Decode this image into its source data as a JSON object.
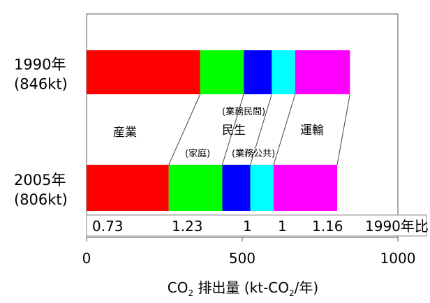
{
  "chart_data": {
    "type": "bar",
    "orientation": "horizontal",
    "stacked": true,
    "categories": [
      {
        "year": "1990年",
        "total": "(846kt)"
      },
      {
        "year": "2005年",
        "total": "(806kt)"
      }
    ],
    "series": [
      {
        "key": "industry",
        "color": "#ff0000",
        "values": [
          365,
          264
        ]
      },
      {
        "key": "household",
        "color": "#00ff00",
        "values": [
          140,
          172
        ]
      },
      {
        "key": "business",
        "color": "#0000ff",
        "values": [
          90,
          90
        ]
      },
      {
        "key": "public",
        "color": "#00ffff",
        "values": [
          75,
          75
        ]
      },
      {
        "key": "transport",
        "color": "#ff00ff",
        "values": [
          176,
          204
        ]
      }
    ],
    "segment_labels": {
      "industry": "産業",
      "minsei": "民生",
      "transport": "運輸",
      "business_private": "(業務民間)",
      "household": "(家庭)",
      "business_public": "(業務公共)"
    },
    "ratios": {
      "values": [
        "0.73",
        "1.23",
        "1",
        "1",
        "1.16"
      ],
      "label": "1990年比"
    },
    "xlim": [
      0,
      1000
    ],
    "xticks": [
      0,
      500,
      1000
    ],
    "xtick_labels": [
      "0",
      "500",
      "1000"
    ],
    "xlabel": "CO",
    "xlabel_sub": "2",
    "xlabel_rest": " 排出量 (kt-CO",
    "xlabel_sub2": "2",
    "xlabel_end": "/年)",
    "grid": false
  }
}
